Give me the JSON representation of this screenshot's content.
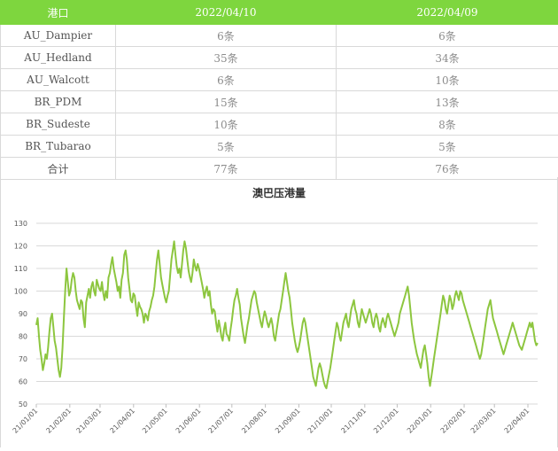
{
  "table": {
    "headers": [
      "港口",
      "2022/04/10",
      "2022/04/09"
    ],
    "rows": [
      [
        "AU_Dampier",
        "6条",
        "6条"
      ],
      [
        "AU_Hedland",
        "35条",
        "34条"
      ],
      [
        "AU_Walcott",
        "6条",
        "10条"
      ],
      [
        "BR_PDM",
        "15条",
        "13条"
      ],
      [
        "BR_Sudeste",
        "10条",
        "8条"
      ],
      [
        "BR_Tubarao",
        "5条",
        "5条"
      ],
      [
        "合计",
        "77条",
        "76条"
      ]
    ]
  },
  "chart_data": {
    "type": "line",
    "title": "澳巴压港量",
    "xlabel": "",
    "ylabel": "",
    "ylim": [
      50,
      130
    ],
    "yticks": [
      50,
      60,
      70,
      80,
      90,
      100,
      110,
      120,
      130
    ],
    "xticks": [
      "21/01/01",
      "21/02/01",
      "21/03/01",
      "21/04/01",
      "21/05/01",
      "21/06/01",
      "21/07/01",
      "21/08/01",
      "21/09/01",
      "21/10/01",
      "21/11/01",
      "21/12/01",
      "22/01/01",
      "22/02/01",
      "22/03/01",
      "22/04/01"
    ],
    "grid": true,
    "line_color": "#8dc63f",
    "x_start": "2021-01-01",
    "series": [
      {
        "values": [
          85,
          88,
          80,
          74,
          70,
          65,
          68,
          72,
          70,
          75,
          82,
          88,
          90,
          84,
          78,
          75,
          70,
          65,
          62,
          66,
          75,
          88,
          100,
          110,
          104,
          98,
          100,
          105,
          108,
          106,
          100,
          96,
          94,
          92,
          96,
          95,
          88,
          84,
          95,
          98,
          101,
          97,
          102,
          104,
          100,
          98,
          105,
          103,
          101,
          100,
          104,
          99,
          96,
          100,
          97,
          106,
          108,
          112,
          115,
          110,
          107,
          104,
          100,
          102,
          97,
          105,
          108,
          116,
          118,
          114,
          106,
          101,
          96,
          95,
          99,
          98,
          93,
          89,
          95,
          93,
          92,
          90,
          86,
          90,
          89,
          87,
          91,
          93,
          96,
          98,
          102,
          108,
          114,
          118,
          112,
          106,
          103,
          100,
          97,
          95,
          98,
          100,
          107,
          114,
          118,
          122,
          116,
          111,
          108,
          110,
          106,
          112,
          118,
          122,
          119,
          114,
          109,
          106,
          104,
          108,
          114,
          111,
          109,
          112,
          110,
          107,
          104,
          101,
          97,
          100,
          102,
          98,
          100,
          94,
          90,
          92,
          91,
          86,
          82,
          87,
          84,
          80,
          78,
          83,
          86,
          81,
          80,
          78,
          83,
          87,
          92,
          96,
          98,
          101,
          97,
          94,
          88,
          84,
          80,
          77,
          81,
          85,
          88,
          92,
          96,
          98,
          100,
          99,
          95,
          92,
          89,
          86,
          84,
          88,
          91,
          89,
          86,
          84,
          86,
          88,
          85,
          80,
          78,
          82,
          86,
          90,
          92,
          96,
          100,
          104,
          108,
          104,
          100,
          97,
          92,
          86,
          82,
          78,
          75,
          73,
          75,
          78,
          82,
          86,
          88,
          86,
          82,
          78,
          74,
          70,
          66,
          62,
          60,
          58,
          62,
          66,
          68,
          66,
          63,
          60,
          58,
          57,
          60,
          63,
          66,
          70,
          74,
          78,
          82,
          86,
          84,
          80,
          78,
          82,
          86,
          88,
          90,
          86,
          84,
          88,
          92,
          94,
          96,
          92,
          90,
          86,
          84,
          88,
          92,
          90,
          88,
          86,
          88,
          90,
          92,
          90,
          86,
          84,
          88,
          90,
          88,
          84,
          82,
          86,
          88,
          86,
          84,
          88,
          90,
          88,
          86,
          84,
          82,
          80,
          82,
          84,
          86,
          90,
          92,
          94,
          96,
          98,
          100,
          102,
          98,
          92,
          86,
          82,
          78,
          75,
          72,
          70,
          68,
          66,
          70,
          74,
          76,
          72,
          68,
          62,
          58,
          62,
          66,
          70,
          74,
          78,
          82,
          86,
          90,
          94,
          98,
          96,
          92,
          90,
          94,
          98,
          96,
          92,
          94,
          98,
          100,
          98,
          96,
          100,
          99,
          96,
          94,
          92,
          90,
          88,
          86,
          84,
          82,
          80,
          78,
          76,
          74,
          72,
          70,
          72,
          76,
          80,
          84,
          88,
          92,
          94,
          96,
          92,
          88,
          86,
          84,
          82,
          80,
          78,
          76,
          74,
          72,
          74,
          76,
          78,
          80,
          82,
          84,
          86,
          84,
          82,
          80,
          78,
          76,
          75,
          74,
          76,
          78,
          80,
          82,
          84,
          86,
          84,
          86,
          82,
          78,
          76,
          77
        ]
      }
    ]
  }
}
